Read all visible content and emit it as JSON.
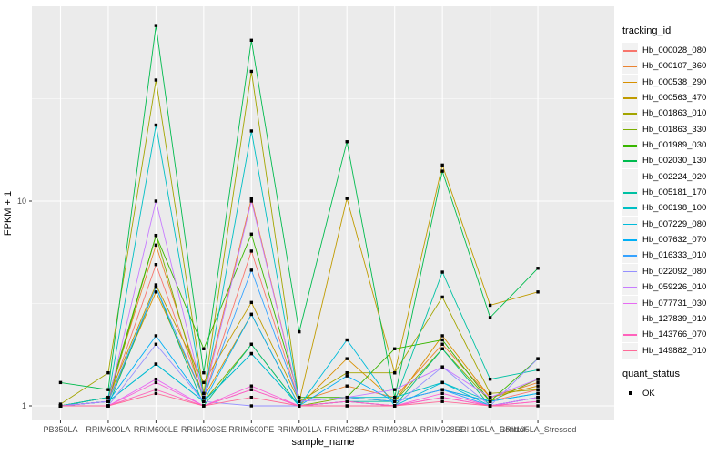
{
  "chart_data": {
    "type": "line",
    "title": "",
    "xlabel": "sample_name",
    "ylabel": "FPKM + 1",
    "y_scale": "log10",
    "y_ticks": [
      "1",
      "10"
    ],
    "y_tick_values": [
      1,
      10
    ],
    "ylim": [
      0.85,
      90
    ],
    "grid": {
      "major_y": [
        1,
        10
      ],
      "minor_y": [
        3.162,
        31.62
      ],
      "major_x": "every_category"
    },
    "panel_bg": "#EBEBEB",
    "grid_color": "#FFFFFF",
    "tick_label_color": "#4D4D4D",
    "axis_title_color": "#000000",
    "point": {
      "shape": "square",
      "color": "#000000",
      "size": 3.4
    },
    "categories": [
      "PB350LA",
      "RRIM600LA",
      "RRIM600LE",
      "RRIM600SE",
      "RRIM600PE",
      "RRIM901LA",
      "RRIM928BA",
      "RRIM928LA",
      "RRIM928LE",
      "RRII105LA_Control",
      "RRII105LA_Stressed"
    ],
    "series": [
      {
        "name": "Hb_000028_080",
        "color": "#F8766D",
        "values": [
          1.0,
          1.05,
          4.9,
          1.1,
          5.7,
          1.05,
          1.1,
          1.05,
          1.2,
          1.05,
          1.2
        ]
      },
      {
        "name": "Hb_000107_360",
        "color": "#EA8331",
        "values": [
          1.0,
          1.1,
          6.1,
          1.15,
          10.3,
          1.05,
          1.25,
          1.1,
          2.0,
          1.1,
          1.3
        ]
      },
      {
        "name": "Hb_000538_290",
        "color": "#D89000",
        "values": [
          1.0,
          1.05,
          3.6,
          1.1,
          2.8,
          1.0,
          1.7,
          1.05,
          2.2,
          1.1,
          1.25
        ]
      },
      {
        "name": "Hb_000563_470",
        "color": "#C09B00",
        "values": [
          1.0,
          1.1,
          3.9,
          1.3,
          3.2,
          1.05,
          10.3,
          1.45,
          15.0,
          3.1,
          3.6
        ]
      },
      {
        "name": "Hb_001863_010",
        "color": "#A3A500",
        "values": [
          1.02,
          1.45,
          39.0,
          1.15,
          43.0,
          1.05,
          1.45,
          1.45,
          3.4,
          1.15,
          1.2
        ]
      },
      {
        "name": "Hb_001863_330",
        "color": "#7CAE00",
        "values": [
          1.0,
          1.05,
          6.8,
          1.05,
          2.0,
          1.0,
          1.1,
          1.05,
          1.9,
          1.05,
          1.35
        ]
      },
      {
        "name": "Hb_001989_030",
        "color": "#39B600",
        "values": [
          1.0,
          1.1,
          6.8,
          1.9,
          6.9,
          1.1,
          1.1,
          1.9,
          2.1,
          1.05,
          1.7
        ]
      },
      {
        "name": "Hb_002030_130",
        "color": "#00BB4E",
        "values": [
          1.3,
          1.2,
          72.0,
          1.45,
          61.0,
          2.3,
          19.5,
          1.1,
          14.0,
          2.7,
          4.7
        ]
      },
      {
        "name": "Hb_002224_020",
        "color": "#00BF7D",
        "values": [
          1.0,
          1.0,
          3.8,
          1.0,
          2.0,
          1.0,
          1.05,
          1.0,
          1.9,
          1.0,
          1.1
        ]
      },
      {
        "name": "Hb_005181_170",
        "color": "#00C1A3",
        "values": [
          1.0,
          1.05,
          1.6,
          1.05,
          1.8,
          1.0,
          1.05,
          1.05,
          4.5,
          1.35,
          1.5
        ]
      },
      {
        "name": "Hb_006198_100",
        "color": "#00BFC4",
        "values": [
          1.0,
          1.1,
          23.5,
          1.1,
          22.0,
          1.05,
          1.1,
          1.1,
          1.3,
          1.05,
          1.15
        ]
      },
      {
        "name": "Hb_007229_080",
        "color": "#00BBDA",
        "values": [
          1.0,
          1.05,
          1.6,
          1.05,
          1.8,
          1.0,
          2.1,
          1.0,
          1.3,
          1.0,
          1.1
        ]
      },
      {
        "name": "Hb_007632_070",
        "color": "#00B0F6",
        "values": [
          1.0,
          1.05,
          2.2,
          1.05,
          2.8,
          1.0,
          1.4,
          1.05,
          1.2,
          1.05,
          1.15
        ]
      },
      {
        "name": "Hb_016333_010",
        "color": "#35A2FF",
        "values": [
          1.0,
          1.05,
          3.8,
          1.1,
          4.6,
          1.05,
          1.1,
          1.05,
          1.2,
          1.0,
          1.1
        ]
      },
      {
        "name": "Hb_022092_080",
        "color": "#9590FF",
        "values": [
          1.0,
          1.0,
          2.0,
          1.05,
          1.0,
          1.0,
          1.05,
          1.0,
          1.55,
          1.0,
          1.7
        ]
      },
      {
        "name": "Hb_059226_010",
        "color": "#C77CFF",
        "values": [
          1.0,
          1.05,
          10.0,
          1.1,
          10.0,
          1.05,
          1.1,
          1.2,
          1.55,
          1.1,
          1.35
        ]
      },
      {
        "name": "Hb_077731_030",
        "color": "#E76BF3",
        "values": [
          1.0,
          1.0,
          1.35,
          1.0,
          1.2,
          1.0,
          1.05,
          1.0,
          1.1,
          1.0,
          1.1
        ]
      },
      {
        "name": "Hb_127839_010",
        "color": "#FA62DB",
        "values": [
          1.0,
          1.0,
          1.3,
          1.0,
          1.25,
          1.0,
          1.0,
          1.0,
          1.15,
          1.0,
          1.05
        ]
      },
      {
        "name": "Hb_143766_070",
        "color": "#FF62BC",
        "values": [
          1.0,
          1.0,
          1.2,
          1.0,
          1.2,
          1.0,
          1.05,
          1.0,
          1.1,
          1.0,
          1.05
        ]
      },
      {
        "name": "Hb_149882_010",
        "color": "#FF6A98",
        "values": [
          1.0,
          1.0,
          1.15,
          1.0,
          1.1,
          1.0,
          1.0,
          1.0,
          1.05,
          1.0,
          1.0
        ]
      }
    ],
    "legend": {
      "tracking_title": "tracking_id",
      "quant_title": "quant_status",
      "quant_items": [
        {
          "label": "OK"
        }
      ],
      "position": "right"
    }
  }
}
